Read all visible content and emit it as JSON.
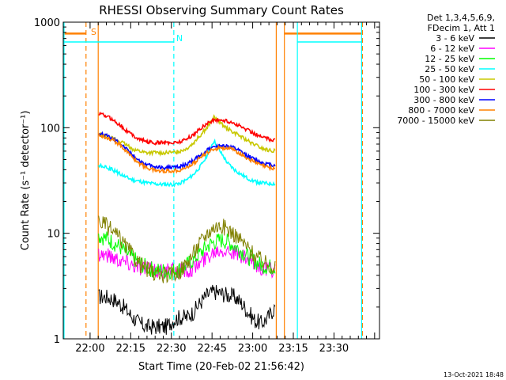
{
  "chart_data": {
    "type": "line",
    "title": "RHESSI Observing Summary Count Rates",
    "xlabel": "Start Time (20-Feb-02 21:56:42)",
    "ylabel": "Count Rate (s⁻¹ detector⁻¹)",
    "yscale": "log",
    "ylim": [
      1,
      1000
    ],
    "xlim_minutes": [
      -3.3,
      35.6
    ],
    "xticks": [
      "22:00",
      "22:15",
      "22:30",
      "22:45",
      "23:00",
      "23:15",
      "23:30"
    ],
    "yticks": [
      "1",
      "10",
      "100",
      "1000"
    ],
    "legend": {
      "placement": "top-right",
      "header": [
        "Det 1,3,4,5,6,9,",
        "FDecim 1, Att 1"
      ]
    },
    "flags": {
      "saa_label": "S",
      "night_label": "N",
      "saa_color": "#ff8000",
      "night_color": "#00ffff",
      "saa_level": 780,
      "night_level": 650
    },
    "series": [
      {
        "name": "3 - 6 keV",
        "color": "#000000",
        "x": [
          0,
          3,
          6,
          9,
          12,
          15,
          18,
          21,
          24,
          27,
          30,
          33,
          36,
          39,
          42,
          45,
          48,
          51,
          54,
          57,
          60,
          63,
          66,
          69,
          72,
          75,
          78
        ],
        "y": [
          2.5,
          2.5,
          2.4,
          2.2,
          1.9,
          1.6,
          1.4,
          1.3,
          1.3,
          1.3,
          1.3,
          1.5,
          1.6,
          1.6,
          1.8,
          2.2,
          2.6,
          2.8,
          2.7,
          2.6,
          2.5,
          2.2,
          1.8,
          1.5,
          1.4,
          1.6,
          2.0
        ]
      },
      {
        "name": "6 - 12 keV",
        "color": "#ff00ff",
        "x": [
          0,
          3,
          6,
          9,
          12,
          15,
          18,
          21,
          24,
          27,
          30,
          33,
          36,
          39,
          42,
          45,
          48,
          51,
          54,
          57,
          60,
          63,
          66,
          69,
          72,
          75,
          78
        ],
        "y": [
          6.5,
          6.3,
          6.0,
          5.7,
          5.4,
          5.1,
          4.8,
          4.6,
          4.5,
          4.4,
          4.4,
          4.4,
          4.4,
          4.5,
          4.7,
          5.2,
          6.0,
          6.8,
          7.2,
          7.0,
          6.5,
          6.0,
          5.5,
          5.0,
          4.7,
          4.5,
          4.5
        ]
      },
      {
        "name": "12 - 25 keV",
        "color": "#00ff00",
        "x": [
          0,
          3,
          6,
          9,
          12,
          15,
          18,
          21,
          24,
          27,
          30,
          33,
          36,
          39,
          42,
          45,
          48,
          51,
          54,
          57,
          60,
          63,
          66,
          69,
          72,
          75,
          78
        ],
        "y": [
          9.5,
          9.0,
          8.3,
          7.5,
          6.6,
          5.8,
          5.2,
          4.8,
          4.5,
          4.4,
          4.4,
          4.4,
          4.6,
          5.0,
          5.6,
          6.5,
          7.5,
          8.2,
          8.6,
          8.3,
          7.6,
          6.8,
          6.0,
          5.4,
          5.0,
          4.8,
          4.8
        ]
      },
      {
        "name": "25 - 50 keV",
        "color": "#00ffff",
        "x": [
          0,
          3,
          6,
          9,
          12,
          15,
          18,
          21,
          24,
          27,
          30,
          33,
          36,
          39,
          42,
          45,
          48,
          51,
          54,
          57,
          60,
          63,
          66,
          69,
          72,
          75,
          78
        ],
        "y": [
          44,
          42,
          40,
          37,
          34,
          32,
          31,
          30,
          29.5,
          29,
          29,
          29,
          30,
          32,
          36,
          43,
          55,
          75,
          58,
          46,
          40,
          36,
          33,
          31,
          30,
          29.5,
          29.5
        ]
      },
      {
        "name": "50 - 100 keV",
        "color": "#c8c800",
        "x": [
          0,
          3,
          6,
          9,
          12,
          15,
          18,
          21,
          24,
          27,
          30,
          33,
          36,
          39,
          42,
          45,
          48,
          51,
          54,
          57,
          60,
          63,
          66,
          69,
          72,
          75,
          78
        ],
        "y": [
          88,
          84,
          80,
          75,
          69,
          63,
          60,
          58,
          58,
          58,
          58,
          58,
          60,
          64,
          72,
          85,
          100,
          125,
          110,
          98,
          90,
          82,
          75,
          69,
          64,
          61,
          60
        ]
      },
      {
        "name": "100 - 300 keV",
        "color": "#ff0000",
        "x": [
          0,
          3,
          6,
          9,
          12,
          15,
          18,
          21,
          24,
          27,
          30,
          33,
          36,
          39,
          42,
          45,
          48,
          51,
          54,
          57,
          60,
          63,
          66,
          69,
          72,
          75,
          78
        ],
        "y": [
          135,
          130,
          120,
          108,
          95,
          85,
          78,
          74,
          72,
          72,
          72,
          72,
          74,
          78,
          86,
          98,
          110,
          118,
          118,
          115,
          110,
          102,
          95,
          88,
          82,
          78,
          76
        ]
      },
      {
        "name": "300 - 800 keV",
        "color": "#0000ff",
        "x": [
          0,
          3,
          6,
          9,
          12,
          15,
          18,
          21,
          24,
          27,
          30,
          33,
          36,
          39,
          42,
          45,
          48,
          51,
          54,
          57,
          60,
          63,
          66,
          69,
          72,
          75,
          78
        ],
        "y": [
          88,
          85,
          80,
          73,
          64,
          55,
          49,
          45,
          43,
          42,
          42,
          42,
          43,
          45,
          49,
          55,
          61,
          66,
          68,
          67,
          64,
          59,
          54,
          50,
          47,
          45,
          44
        ]
      },
      {
        "name": "800 - 7000 keV",
        "color": "#ff8000",
        "x": [
          0,
          3,
          6,
          9,
          12,
          15,
          18,
          21,
          24,
          27,
          30,
          33,
          36,
          39,
          42,
          45,
          48,
          51,
          54,
          57,
          60,
          63,
          66,
          69,
          72,
          75,
          78
        ],
        "y": [
          85,
          82,
          77,
          70,
          61,
          52,
          46,
          42,
          40,
          39,
          39,
          39,
          40,
          42,
          46,
          52,
          58,
          63,
          65,
          64,
          61,
          56,
          51,
          47,
          44,
          42,
          41
        ]
      },
      {
        "name": "7000 - 15000 keV",
        "color": "#808000",
        "x": [
          0,
          3,
          6,
          9,
          12,
          15,
          18,
          21,
          24,
          27,
          30,
          33,
          36,
          39,
          42,
          45,
          48,
          51,
          54,
          57,
          60,
          63,
          66,
          69,
          72,
          75,
          78
        ],
        "y": [
          13,
          12,
          10.5,
          9,
          7.5,
          6.2,
          5.2,
          4.6,
          4.2,
          4.0,
          4.0,
          4.1,
          4.4,
          5.2,
          6.5,
          8.2,
          10,
          11.5,
          11.8,
          11,
          9.8,
          8.5,
          7.2,
          6.2,
          5.5,
          5.0,
          4.8
        ]
      }
    ]
  },
  "footer": {
    "timestamp": "13-Oct-2021 18:48"
  }
}
